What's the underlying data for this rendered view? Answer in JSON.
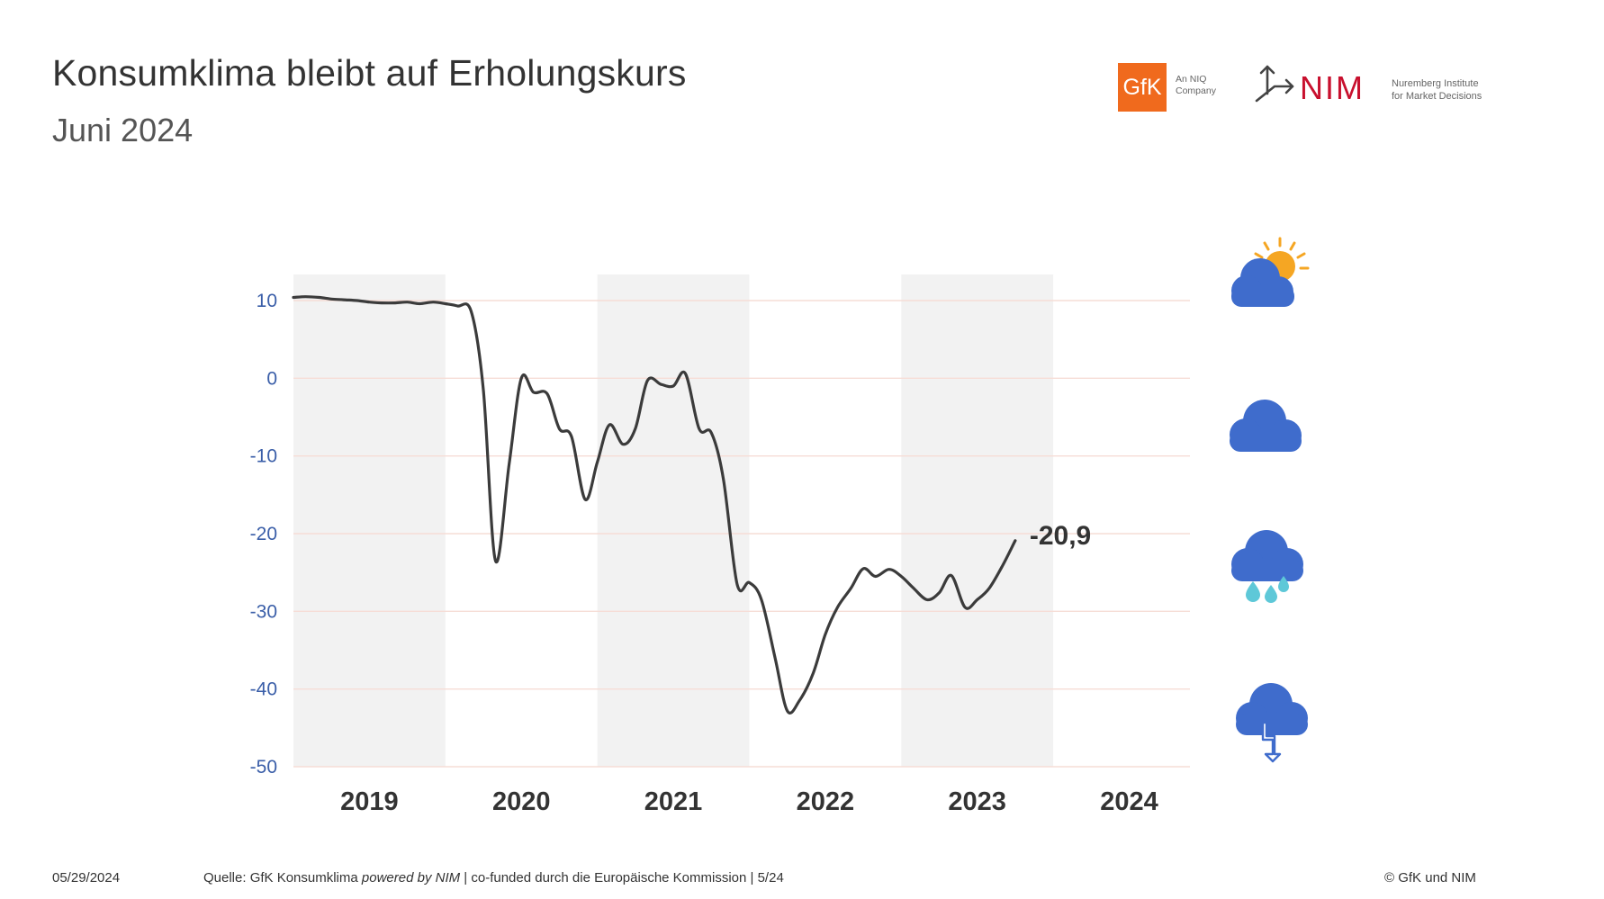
{
  "header": {
    "title": "Konsumklima bleibt auf Erholungskurs",
    "subtitle": "Juni 2024"
  },
  "logos": {
    "gfk": "GfK",
    "gfk_tagline_1": "An NIQ",
    "gfk_tagline_2": "Company",
    "nim": "NIM",
    "nim_tagline_1": "Nuremberg Institute",
    "nim_tagline_2": "for Market Decisions",
    "gfk_color": "#f06a1d",
    "nim_color": "#c8102e"
  },
  "footer": {
    "date": "05/29/2024",
    "source_prefix": "Quelle: GfK Konsumklima ",
    "source_italic": "powered by NIM",
    "source_suffix": " | co-funded durch die Europäische Kommission | 5/24",
    "copyright": "© GfK und NIM"
  },
  "chart_data": {
    "type": "line",
    "title": "Konsumklima bleibt auf Erholungskurs",
    "subtitle": "Juni 2024",
    "xlabel": "",
    "ylabel": "",
    "ylim": [
      -50,
      10
    ],
    "yticks": [
      10,
      0,
      -10,
      -20,
      -30,
      -40,
      -50
    ],
    "ytick_labels": [
      "10",
      "0",
      "-10",
      "-20",
      "-30",
      "-40",
      "-50"
    ],
    "xlim": [
      2019.0,
      2024.9
    ],
    "x_categories": [
      "2019",
      "2020",
      "2021",
      "2022",
      "2023",
      "2024"
    ],
    "shaded_years": [
      "2019",
      "2021",
      "2023"
    ],
    "grid": true,
    "line_color": "#3b3b3b",
    "tick_color": "#3a5ea8",
    "annotation": "-20,9",
    "icon_colors": {
      "cloud": "#3f6ccc",
      "sun": "#f5a623",
      "rain": "#5ec8d8"
    },
    "weather_icons": [
      "sun-cloud-icon",
      "cloud-icon",
      "rain-cloud-icon",
      "storm-cloud-icon"
    ],
    "series": [
      {
        "x": [
          2019.0,
          2019.08,
          2019.17,
          2019.25,
          2019.33,
          2019.42,
          2019.5,
          2019.58,
          2019.67,
          2019.75,
          2019.83,
          2019.92,
          2020.0,
          2020.08,
          2020.17,
          2020.25,
          2020.33,
          2020.42,
          2020.5,
          2020.58,
          2020.67,
          2020.75,
          2020.83,
          2020.92,
          2021.0,
          2021.08,
          2021.17,
          2021.25,
          2021.33,
          2021.42,
          2021.5,
          2021.58,
          2021.67,
          2021.75,
          2021.83,
          2021.92,
          2022.0,
          2022.08,
          2022.17,
          2022.25,
          2022.33,
          2022.42,
          2022.5,
          2022.58,
          2022.67,
          2022.75,
          2022.83,
          2022.92,
          2023.0,
          2023.08,
          2023.17,
          2023.25,
          2023.33,
          2023.42,
          2023.5,
          2023.58,
          2023.67,
          2023.75,
          2023.83,
          2023.92,
          2024.0,
          2024.08,
          2024.17,
          2024.25,
          2024.33,
          2024.42
        ],
        "values": [
          10.4,
          10.5,
          10.4,
          10.2,
          10.1,
          10.0,
          9.8,
          9.7,
          9.7,
          9.8,
          9.6,
          9.8,
          9.6,
          9.3,
          8.6,
          -1.5,
          -23.5,
          -11.0,
          0.0,
          -1.8,
          -2.0,
          -6.5,
          -7.5,
          -15.6,
          -10.8,
          -6.0,
          -8.5,
          -6.5,
          -0.3,
          -0.8,
          -1.0,
          0.6,
          -6.5,
          -7.0,
          -13.0,
          -26.5,
          -26.3,
          -28.5,
          -36.0,
          -42.8,
          -41.5,
          -38.0,
          -33.0,
          -29.5,
          -27.0,
          -24.5,
          -25.5,
          -24.6,
          -25.5,
          -27.0,
          -28.5,
          -27.6,
          -25.4,
          -29.5,
          -28.5,
          -27.0,
          -24.0,
          -20.9,
          null,
          null,
          null,
          null,
          null,
          null,
          null,
          null
        ]
      }
    ]
  }
}
